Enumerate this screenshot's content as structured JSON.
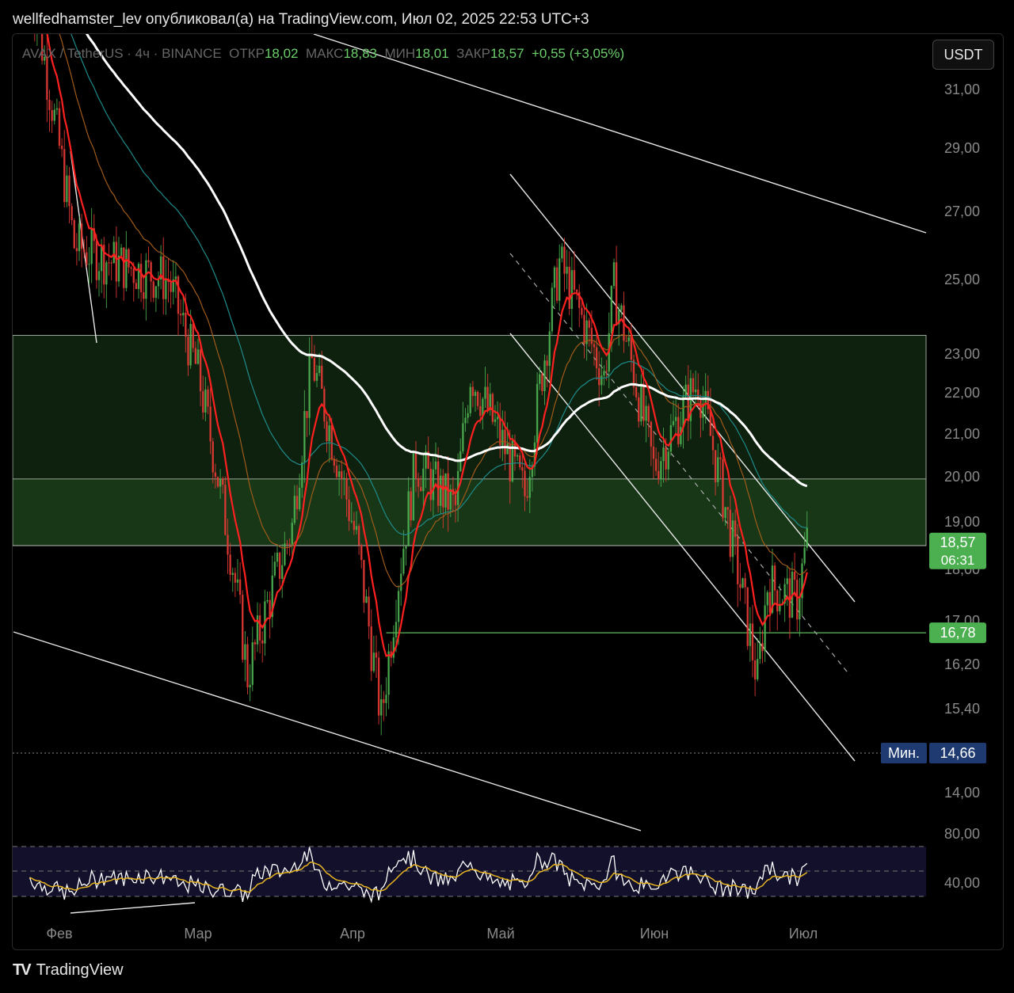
{
  "header": {
    "text": "wellfedhamster_lev опубликовал(а) на TradingView.com, Июл 02, 2025 22:53 UTC+3"
  },
  "legend": {
    "symbol": "AVAX / TetherUS · 4ч · BINANCE",
    "open_label": "ОТКР",
    "open": "18,02",
    "high_label": "МАКС",
    "high": "18,83",
    "low_label": "МИН",
    "low": "18,01",
    "close_label": "ЗАКР",
    "close": "18,57",
    "change": "+0,55 (+3,05%)"
  },
  "currency_button": "USDT",
  "footer": {
    "logo": "TV",
    "brand": "TradingView"
  },
  "colors": {
    "up": "#4caf50",
    "down": "#e53935",
    "zone": "#1f4a1f",
    "ma_white": "#ffffff",
    "ma_red": "#ff2020"
  },
  "chart_data": {
    "type": "candlestick",
    "xaxis": {
      "labels": [
        "Фев",
        "Мар",
        "Апр",
        "Май",
        "Июн",
        "Июл"
      ]
    },
    "yaxis": {
      "labels": [
        "31,00",
        "29,00",
        "27,00",
        "25,00",
        "23,00",
        "22,00",
        "21,00",
        "20,00",
        "19,00",
        "18,00",
        "17,00",
        "16,20",
        "15,40",
        "14,00"
      ]
    },
    "price_labels": [
      {
        "text": "18,57",
        "sub": "06:31",
        "value": 18.57,
        "color": "#4caf50"
      },
      {
        "text": "16,78",
        "value": 16.78,
        "color": "#4caf50"
      },
      {
        "prefix": "Мин.",
        "text": "14,66",
        "value": 14.66,
        "color": "#1e3a70"
      }
    ],
    "zones": [
      {
        "from": 18.5,
        "to": 23.5
      },
      {
        "from": 18.5,
        "to": 19.95
      }
    ],
    "hlines": [
      18.5,
      16.78,
      14.66
    ],
    "series_key_points": [
      {
        "x": "2025-01-26",
        "y": 35.0
      },
      {
        "x": "2025-02-04",
        "y": 26.0
      },
      {
        "x": "2025-02-12",
        "y": 25.5
      },
      {
        "x": "2025-02-23",
        "y": 25.0
      },
      {
        "x": "2025-03-01",
        "y": 22.5
      },
      {
        "x": "2025-03-08",
        "y": 18.1
      },
      {
        "x": "2025-03-11",
        "y": 16.0
      },
      {
        "x": "2025-03-20",
        "y": 18.9
      },
      {
        "x": "2025-03-24",
        "y": 22.8
      },
      {
        "x": "2025-04-02",
        "y": 18.6
      },
      {
        "x": "2025-04-07",
        "y": 15.2
      },
      {
        "x": "2025-04-10",
        "y": 17.5
      },
      {
        "x": "2025-04-14",
        "y": 20.3
      },
      {
        "x": "2025-04-22",
        "y": 19.3
      },
      {
        "x": "2025-04-25",
        "y": 22.5
      },
      {
        "x": "2025-05-06",
        "y": 19.6
      },
      {
        "x": "2025-05-13",
        "y": 25.5
      },
      {
        "x": "2025-05-22",
        "y": 22.4
      },
      {
        "x": "2025-05-24",
        "y": 24.8
      },
      {
        "x": "2025-06-01",
        "y": 20.2
      },
      {
        "x": "2025-06-10",
        "y": 22.3
      },
      {
        "x": "2025-06-17",
        "y": 18.5
      },
      {
        "x": "2025-06-22",
        "y": 15.9
      },
      {
        "x": "2025-06-24",
        "y": 17.7
      },
      {
        "x": "2025-06-30",
        "y": 17.4
      },
      {
        "x": "2025-07-02",
        "y": 18.57
      }
    ],
    "oscillator": {
      "labels": [
        "80,00",
        "40,00"
      ]
    }
  }
}
